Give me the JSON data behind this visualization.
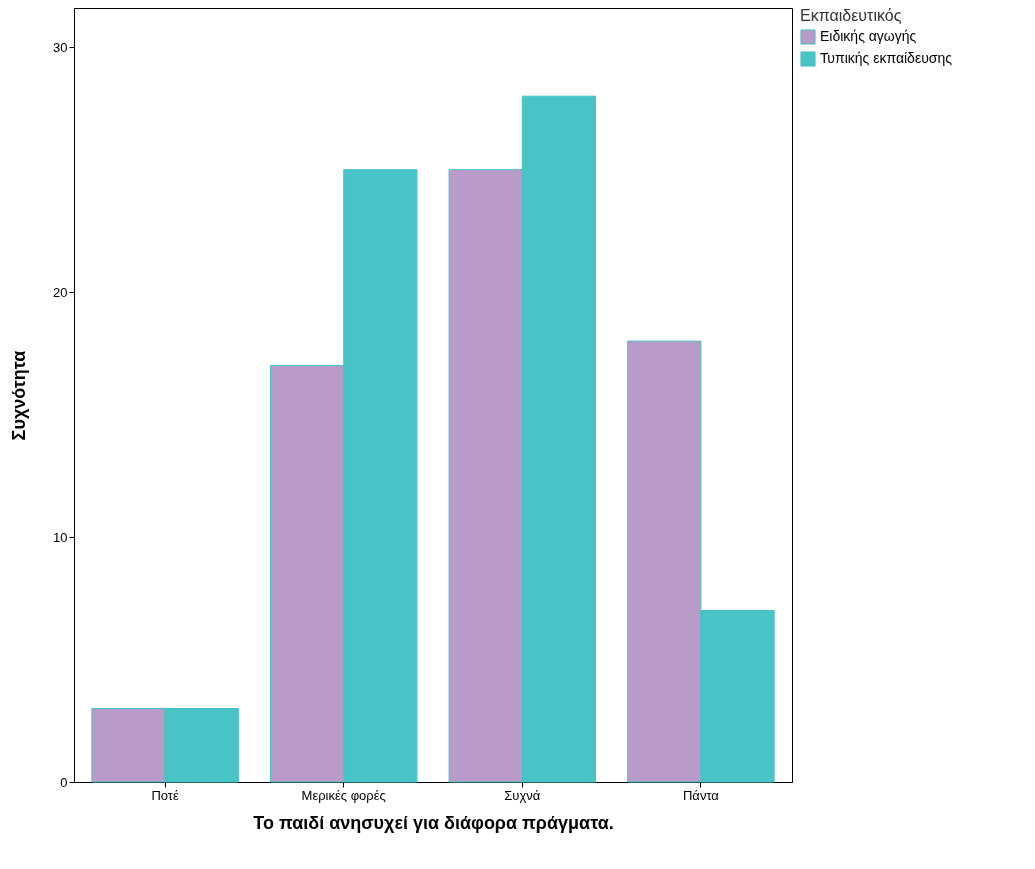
{
  "chart_data": {
    "type": "bar",
    "xlabel": "Το παιδί ανησυχεί για διάφορα πράγματα.",
    "ylabel": "Συχνότητα",
    "legend_title": "Εκπαιδευτικός",
    "categories": [
      "Ποτέ",
      "Μερικές φορές",
      "Συχνά",
      "Πάντα"
    ],
    "series": [
      {
        "name": "Ειδικής αγωγής",
        "color": "#b89bc9",
        "values": [
          3,
          17,
          25,
          18
        ]
      },
      {
        "name": "Τυπικής εκπαίδευσης",
        "color": "#48c3c6",
        "values": [
          3,
          25,
          28,
          7
        ]
      }
    ],
    "ylim": [
      0,
      31.6
    ],
    "yticks": [
      0,
      10,
      20,
      30
    ],
    "grid": false,
    "legend": "right"
  }
}
